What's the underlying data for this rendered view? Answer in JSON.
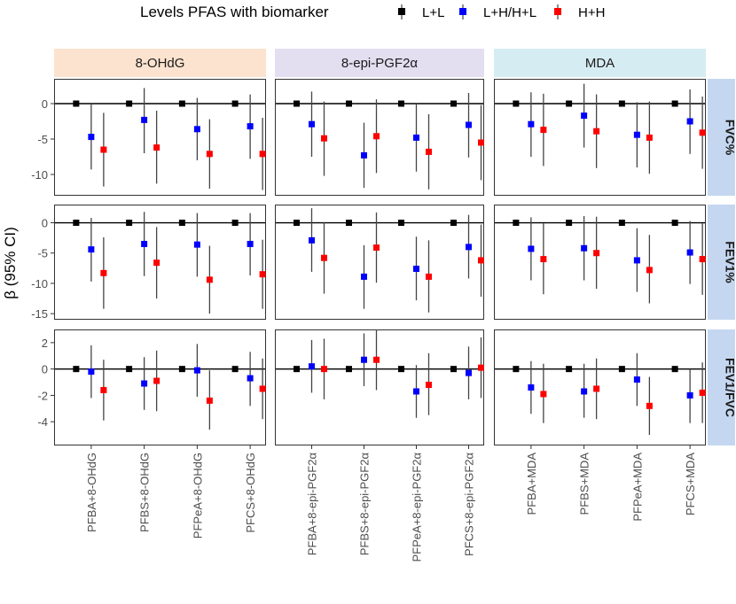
{
  "legend": {
    "title": "Levels PFAS with biomarker",
    "items": [
      {
        "label": "L+L",
        "color": "#000000"
      },
      {
        "label": "L+H/H+L",
        "color": "#0000ff"
      },
      {
        "label": "H+H",
        "color": "#ff0000"
      }
    ]
  },
  "colors": {
    "strip_8ohdg": "#fbe3cf",
    "strip_pgf": "#e3def0",
    "strip_mda": "#d6ecf3",
    "strip_row": "#c5d7f0",
    "errorbar": "#444444",
    "zero_line": "#000000"
  },
  "chart_data": {
    "type": "scatter",
    "ylabel": "β (95% CI)",
    "columns": [
      {
        "name": "8-OHdG",
        "categories": [
          "PFBA+8-OHdG",
          "PFBS+8-OHdG",
          "PFPeA+8-OHdG",
          "PFCS+8-OHdG"
        ]
      },
      {
        "name": "8-epi-PGF2α",
        "categories": [
          "PFBA+8-epi-PGF2α",
          "PFBS+8-epi-PGF2α",
          "PFPeA+8-epi-PGF2α",
          "PFCS+8-epi-PGF2α"
        ]
      },
      {
        "name": "MDA",
        "categories": [
          "PFBA+MDA",
          "PFBS+MDA",
          "PFPeA+MDA",
          "PFCS+MDA"
        ]
      }
    ],
    "rows": [
      {
        "name": "FVC%",
        "ylim": [
          -13,
          3.5
        ],
        "yticks": [
          0,
          -5,
          -10
        ],
        "data": [
          [
            {
              "LH": {
                "v": -4.7,
                "lo": -9.3,
                "hi": 0.0
              },
              "HH": {
                "v": -6.5,
                "lo": -11.7,
                "hi": -1.3
              }
            },
            {
              "LH": {
                "v": -2.3,
                "lo": -7.0,
                "hi": 2.2
              },
              "HH": {
                "v": -6.2,
                "lo": -11.3,
                "hi": -1.0
              }
            },
            {
              "LH": {
                "v": -3.6,
                "lo": -8.0,
                "hi": 0.8
              },
              "HH": {
                "v": -7.1,
                "lo": -12.0,
                "hi": -2.2
              }
            },
            {
              "LH": {
                "v": -3.2,
                "lo": -7.8,
                "hi": 1.3
              },
              "HH": {
                "v": -7.1,
                "lo": -12.2,
                "hi": -2.0
              }
            }
          ],
          [
            {
              "LH": {
                "v": -2.9,
                "lo": -7.5,
                "hi": 1.7
              },
              "HH": {
                "v": -4.9,
                "lo": -10.2,
                "hi": 0.3
              }
            },
            {
              "LH": {
                "v": -7.3,
                "lo": -11.9,
                "hi": -2.7
              },
              "HH": {
                "v": -4.6,
                "lo": -9.8,
                "hi": 0.6
              }
            },
            {
              "LH": {
                "v": -4.8,
                "lo": -9.6,
                "hi": 0.0
              },
              "HH": {
                "v": -6.8,
                "lo": -12.1,
                "hi": -1.5
              }
            },
            {
              "LH": {
                "v": -3.0,
                "lo": -7.6,
                "hi": 1.5
              },
              "HH": {
                "v": -5.5,
                "lo": -10.8,
                "hi": -0.2
              }
            }
          ],
          [
            {
              "LH": {
                "v": -2.9,
                "lo": -7.5,
                "hi": 1.6
              },
              "HH": {
                "v": -3.7,
                "lo": -8.8,
                "hi": 1.4
              }
            },
            {
              "LH": {
                "v": -1.7,
                "lo": -6.2,
                "hi": 2.8
              },
              "HH": {
                "v": -3.9,
                "lo": -9.1,
                "hi": 1.3
              }
            },
            {
              "LH": {
                "v": -4.4,
                "lo": -9.0,
                "hi": 0.2
              },
              "HH": {
                "v": -4.8,
                "lo": -9.9,
                "hi": 0.3
              }
            },
            {
              "LH": {
                "v": -2.5,
                "lo": -7.1,
                "hi": 2.0
              },
              "HH": {
                "v": -4.1,
                "lo": -9.2,
                "hi": 1.0
              }
            }
          ]
        ]
      },
      {
        "name": "FEV1%",
        "ylim": [
          -16,
          3
        ],
        "yticks": [
          0,
          -5,
          -10,
          -15
        ],
        "data": [
          [
            {
              "LH": {
                "v": -4.4,
                "lo": -9.7,
                "hi": 0.8
              },
              "HH": {
                "v": -8.3,
                "lo": -14.2,
                "hi": -2.4
              }
            },
            {
              "LH": {
                "v": -3.5,
                "lo": -8.8,
                "hi": 1.8
              },
              "HH": {
                "v": -6.6,
                "lo": -12.5,
                "hi": -0.7
              }
            },
            {
              "LH": {
                "v": -3.6,
                "lo": -8.9,
                "hi": 1.6
              },
              "HH": {
                "v": -9.4,
                "lo": -15.0,
                "hi": -3.8
              }
            },
            {
              "LH": {
                "v": -3.5,
                "lo": -8.7,
                "hi": 1.6
              },
              "HH": {
                "v": -8.5,
                "lo": -14.2,
                "hi": -2.8
              }
            }
          ],
          [
            {
              "LH": {
                "v": -2.9,
                "lo": -8.1,
                "hi": 2.4
              },
              "HH": {
                "v": -5.8,
                "lo": -11.7,
                "hi": 0.1
              }
            },
            {
              "LH": {
                "v": -8.9,
                "lo": -14.2,
                "hi": -3.7
              },
              "HH": {
                "v": -4.1,
                "lo": -9.9,
                "hi": 1.7
              }
            },
            {
              "LH": {
                "v": -7.6,
                "lo": -12.8,
                "hi": -2.3
              },
              "HH": {
                "v": -8.9,
                "lo": -14.8,
                "hi": -2.9
              }
            },
            {
              "LH": {
                "v": -4.0,
                "lo": -9.2,
                "hi": 1.3
              },
              "HH": {
                "v": -6.2,
                "lo": -12.2,
                "hi": -0.3
              }
            }
          ],
          [
            {
              "LH": {
                "v": -4.3,
                "lo": -9.5,
                "hi": 0.9
              },
              "HH": {
                "v": -6.0,
                "lo": -11.8,
                "hi": -0.1
              }
            },
            {
              "LH": {
                "v": -4.2,
                "lo": -9.5,
                "hi": 1.1
              },
              "HH": {
                "v": -5.0,
                "lo": -10.9,
                "hi": 1.0
              }
            },
            {
              "LH": {
                "v": -6.2,
                "lo": -11.4,
                "hi": -0.9
              },
              "HH": {
                "v": -7.8,
                "lo": -13.3,
                "hi": -2.0
              }
            },
            {
              "LH": {
                "v": -4.9,
                "lo": -10.1,
                "hi": 0.3
              },
              "HH": {
                "v": -6.0,
                "lo": -11.9,
                "hi": -0.1
              }
            }
          ]
        ]
      },
      {
        "name": "FEV1/FVC",
        "ylim": [
          -5.8,
          3
        ],
        "yticks": [
          2,
          0,
          -2,
          -4
        ],
        "data": [
          [
            {
              "LH": {
                "v": -0.2,
                "lo": -2.2,
                "hi": 1.8
              },
              "HH": {
                "v": -1.6,
                "lo": -3.9,
                "hi": 0.7
              }
            },
            {
              "LH": {
                "v": -1.1,
                "lo": -3.1,
                "hi": 0.9
              },
              "HH": {
                "v": -0.9,
                "lo": -3.2,
                "hi": 1.4
              }
            },
            {
              "LH": {
                "v": -0.1,
                "lo": -2.1,
                "hi": 1.9
              },
              "HH": {
                "v": -2.4,
                "lo": -4.6,
                "hi": -0.1
              }
            },
            {
              "LH": {
                "v": -0.7,
                "lo": -2.8,
                "hi": 1.3
              },
              "HH": {
                "v": -1.5,
                "lo": -3.8,
                "hi": 0.8
              }
            }
          ],
          [
            {
              "LH": {
                "v": 0.2,
                "lo": -1.8,
                "hi": 2.2
              },
              "HH": {
                "v": 0.0,
                "lo": -2.3,
                "hi": 2.3
              }
            },
            {
              "LH": {
                "v": 0.7,
                "lo": -1.3,
                "hi": 2.7
              },
              "HH": {
                "v": 0.7,
                "lo": -1.6,
                "hi": 3.0
              }
            },
            {
              "LH": {
                "v": -1.7,
                "lo": -3.7,
                "hi": 0.3
              },
              "HH": {
                "v": -1.2,
                "lo": -3.5,
                "hi": 1.2
              }
            },
            {
              "LH": {
                "v": -0.3,
                "lo": -2.3,
                "hi": 1.7
              },
              "HH": {
                "v": 0.1,
                "lo": -2.2,
                "hi": 2.4
              }
            }
          ],
          [
            {
              "LH": {
                "v": -1.4,
                "lo": -3.4,
                "hi": 0.6
              },
              "HH": {
                "v": -1.9,
                "lo": -4.1,
                "hi": 0.4
              }
            },
            {
              "LH": {
                "v": -1.7,
                "lo": -3.7,
                "hi": 0.4
              },
              "HH": {
                "v": -1.5,
                "lo": -3.8,
                "hi": 0.8
              }
            },
            {
              "LH": {
                "v": -0.8,
                "lo": -2.8,
                "hi": 1.2
              },
              "HH": {
                "v": -2.8,
                "lo": -5.0,
                "hi": -0.6
              }
            },
            {
              "LH": {
                "v": -2.0,
                "lo": -4.1,
                "hi": 0.0
              },
              "HH": {
                "v": -1.8,
                "lo": -4.1,
                "hi": 0.5
              }
            }
          ]
        ]
      }
    ],
    "reference": {
      "LL": 0
    },
    "grid": false,
    "legend_position": "top"
  }
}
